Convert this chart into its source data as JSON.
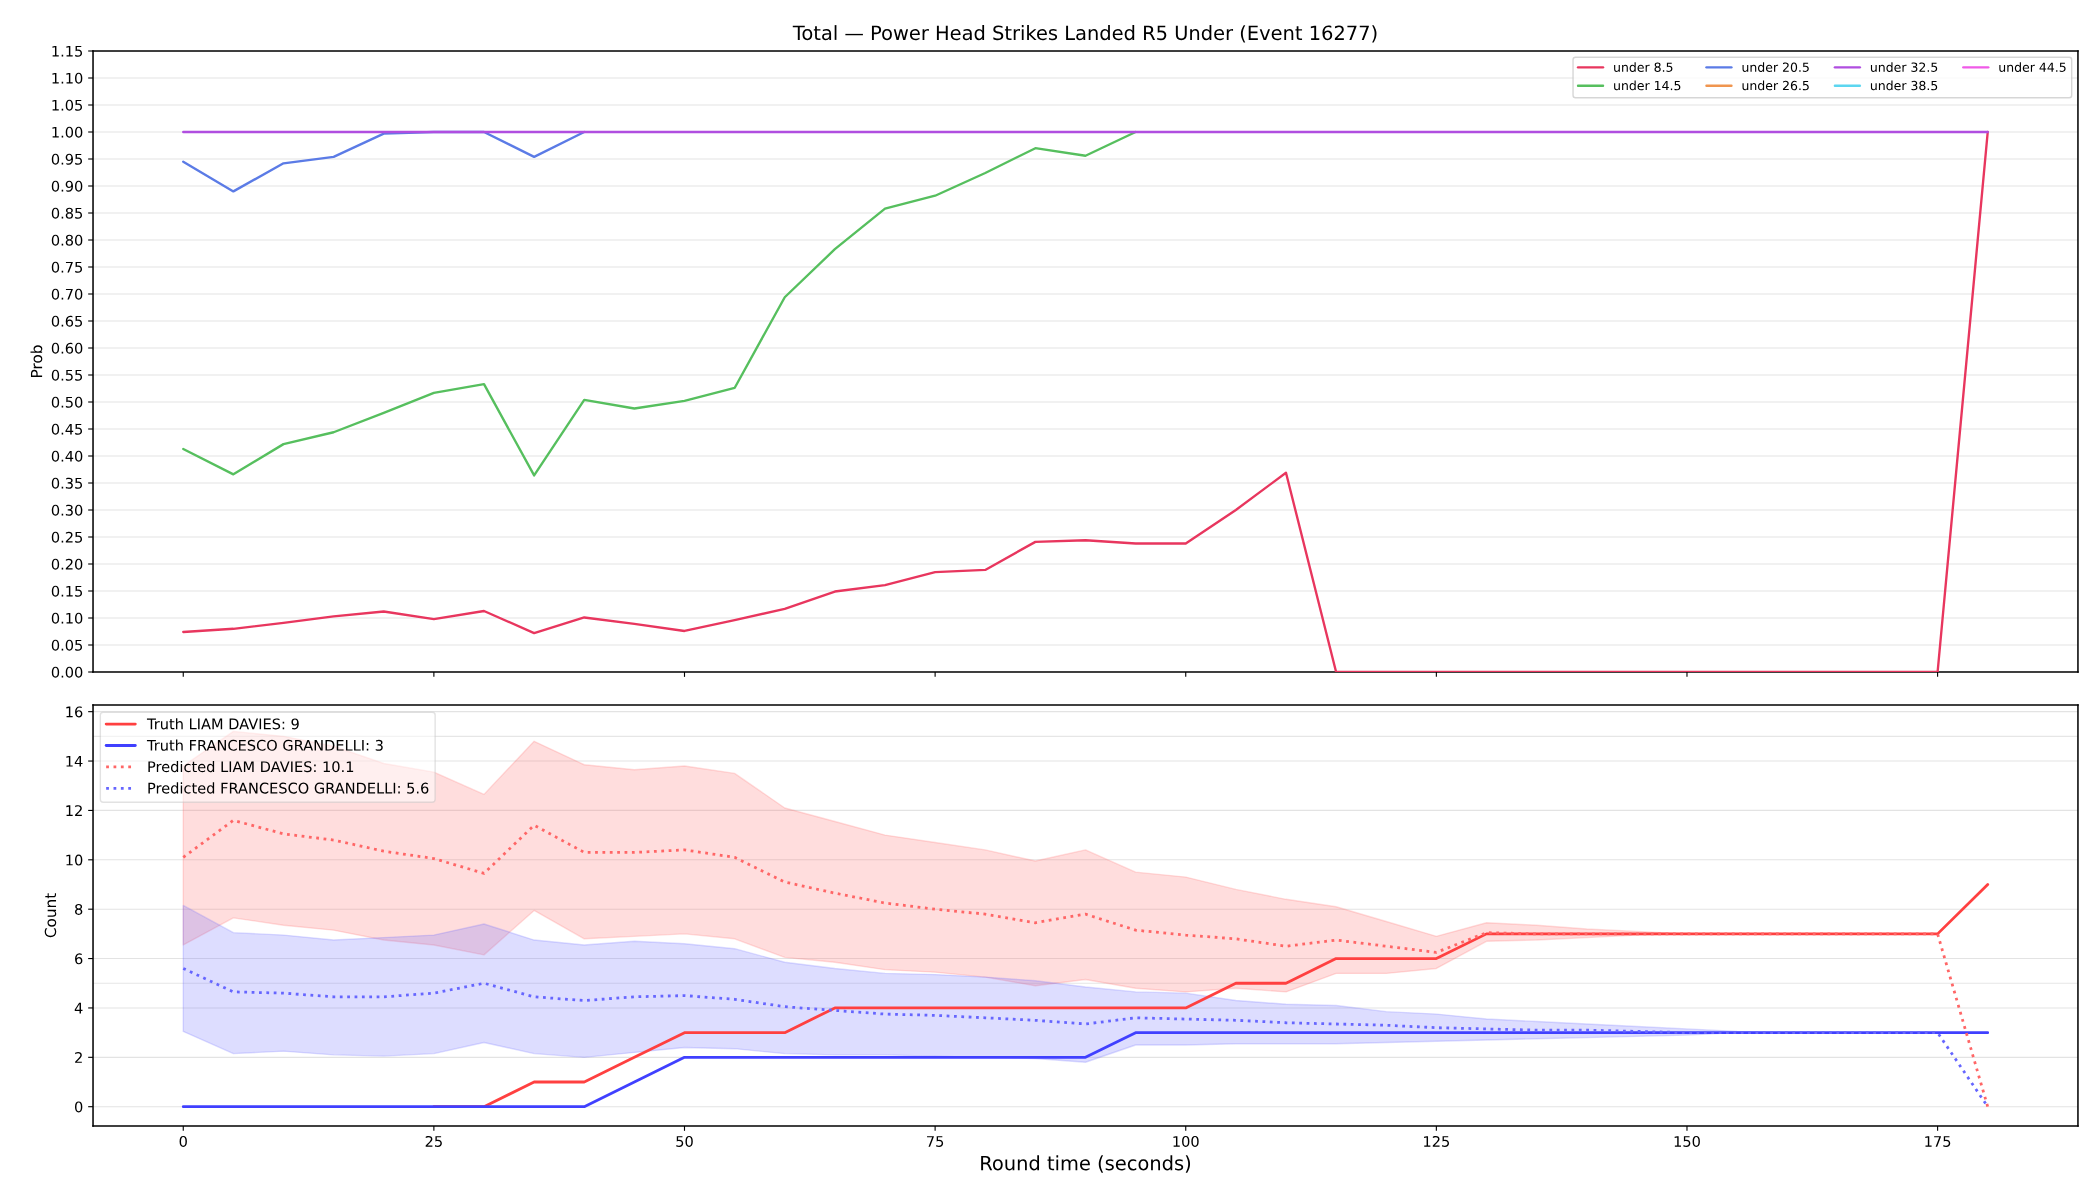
{
  "chart_data": [
    {
      "type": "line",
      "title": "Total — Power Head Strikes Landed R5 Under (Event 16277)",
      "ylabel": "Prob",
      "x": [
        0,
        5,
        10,
        15,
        20,
        25,
        30,
        35,
        40,
        45,
        50,
        55,
        60,
        65,
        70,
        75,
        80,
        85,
        90,
        95,
        100,
        105,
        110,
        115,
        120,
        125,
        130,
        135,
        140,
        145,
        150,
        155,
        160,
        165,
        170,
        175,
        180
      ],
      "series": [
        {
          "name": "under 8.5",
          "color": "#e8365e",
          "values": [
            0.074,
            0.08,
            0.091,
            0.103,
            0.112,
            0.098,
            0.113,
            0.072,
            0.101,
            0.089,
            0.076,
            0.096,
            0.117,
            0.149,
            0.161,
            0.185,
            0.189,
            0.241,
            0.244,
            0.238,
            0.238,
            0.3,
            0.369,
            0,
            0,
            0,
            0,
            0,
            0,
            0,
            0,
            0,
            0,
            0,
            0,
            0,
            1.0
          ]
        },
        {
          "name": "under 14.5",
          "color": "#56bf5e",
          "values": [
            0.413,
            0.366,
            0.422,
            0.444,
            0.48,
            0.517,
            0.533,
            0.364,
            0.504,
            0.488,
            0.502,
            0.526,
            0.694,
            0.783,
            0.858,
            0.882,
            0.924,
            0.97,
            0.956,
            1.0,
            null,
            null,
            null,
            null,
            null,
            null,
            null,
            null,
            null,
            null,
            null,
            null,
            null,
            null,
            null,
            null,
            null
          ]
        },
        {
          "name": "under 20.5",
          "color": "#5b7be6",
          "values": [
            0.945,
            0.89,
            0.942,
            0.954,
            0.997,
            1.0,
            1.0,
            0.954,
            1.0,
            null,
            null,
            null,
            null,
            null,
            null,
            null,
            null,
            null,
            null,
            null,
            null,
            null,
            null,
            null,
            null,
            null,
            null,
            null,
            null,
            null,
            null,
            null,
            null,
            null,
            null,
            null,
            null
          ]
        },
        {
          "name": "under 26.5",
          "color": "#f0954f",
          "values": [
            null,
            null,
            null,
            null,
            null,
            null,
            null,
            null,
            null,
            null,
            null,
            null,
            null,
            null,
            null,
            null,
            null,
            null,
            null,
            null,
            null,
            null,
            null,
            null,
            null,
            null,
            null,
            null,
            null,
            null,
            null,
            null,
            null,
            null,
            null,
            null,
            null
          ]
        },
        {
          "name": "under 32.5",
          "color": "#b04ee0",
          "values": [
            1.0,
            1.0,
            1.0,
            1.0,
            1.0,
            1.0,
            1.0,
            1.0,
            1.0,
            1.0,
            1.0,
            1.0,
            1.0,
            1.0,
            1.0,
            1.0,
            1.0,
            1.0,
            1.0,
            1.0,
            1.0,
            1.0,
            1.0,
            1.0,
            1.0,
            1.0,
            1.0,
            1.0,
            1.0,
            1.0,
            1.0,
            1.0,
            1.0,
            1.0,
            1.0,
            1.0,
            1.0
          ]
        },
        {
          "name": "under 38.5",
          "color": "#5cd6f0",
          "values": [
            null,
            null,
            null,
            null,
            null,
            null,
            null,
            null,
            null,
            null,
            null,
            null,
            null,
            null,
            null,
            null,
            null,
            null,
            null,
            null,
            null,
            null,
            null,
            null,
            null,
            null,
            null,
            null,
            null,
            null,
            null,
            null,
            null,
            null,
            null,
            null,
            null
          ]
        },
        {
          "name": "under 44.5",
          "color": "#f05ae8",
          "values": [
            null,
            null,
            null,
            null,
            null,
            null,
            null,
            null,
            null,
            null,
            null,
            null,
            null,
            null,
            null,
            null,
            null,
            null,
            null,
            null,
            null,
            null,
            null,
            null,
            null,
            null,
            null,
            null,
            null,
            null,
            null,
            null,
            null,
            null,
            null,
            null,
            null
          ]
        }
      ],
      "xlim": [
        -9,
        189
      ],
      "ylim": [
        0,
        1.15
      ],
      "xticks": [
        0,
        25,
        50,
        75,
        100,
        125,
        150,
        175
      ],
      "yticks": [
        {
          "value": 0,
          "label": "0.00"
        },
        0.05,
        {
          "value": 0.1,
          "label": "0.10"
        },
        0.15,
        {
          "value": 0.2,
          "label": "0.20"
        },
        0.25,
        {
          "value": 0.3,
          "label": "0.30"
        },
        0.35,
        {
          "value": 0.4,
          "label": "0.40"
        },
        0.45,
        {
          "value": 0.5,
          "label": "0.50"
        },
        0.55,
        {
          "value": 0.6,
          "label": "0.60"
        },
        0.65,
        {
          "value": 0.7,
          "label": "0.70"
        },
        0.75,
        {
          "value": 0.8,
          "label": "0.80"
        },
        0.85,
        {
          "value": 0.9,
          "label": "0.90"
        },
        0.95,
        {
          "value": 1,
          "label": "1.00"
        },
        1.05,
        {
          "value": 1.1,
          "label": "1.10"
        },
        1.15
      ],
      "grid": "y",
      "legend": "top right",
      "tick_labels": "y"
    },
    {
      "type": "line",
      "xlabel": "Round time (seconds)",
      "ylabel": "Count",
      "x": [
        0,
        5,
        10,
        15,
        20,
        25,
        30,
        35,
        40,
        45,
        50,
        55,
        60,
        65,
        70,
        75,
        80,
        85,
        90,
        95,
        100,
        105,
        110,
        115,
        120,
        125,
        130,
        135,
        140,
        145,
        150,
        155,
        160,
        165,
        170,
        175,
        180
      ],
      "series": [
        {
          "name": "Truth LIAM DAVIES: 9",
          "color": "#ff4040",
          "line_style": "solid",
          "values": [
            null,
            null,
            null,
            null,
            null,
            0,
            0,
            1,
            1,
            2,
            3,
            3,
            3,
            4,
            4,
            4,
            4,
            4,
            4,
            4,
            4,
            5,
            5,
            6,
            6,
            6,
            7,
            7,
            7,
            7,
            7,
            7,
            7,
            7,
            7,
            7,
            9
          ]
        },
        {
          "name": "Truth FRANCESCO GRANDELLI: 3",
          "color": "#4040ff",
          "line_style": "solid",
          "values": [
            0,
            0,
            0,
            0,
            0,
            0,
            0,
            0,
            0,
            1,
            2,
            2,
            2,
            2,
            2,
            2,
            2,
            2,
            2,
            3,
            3,
            3,
            3,
            3,
            3,
            3,
            3,
            3,
            3,
            3,
            3,
            3,
            3,
            3,
            3,
            3,
            3
          ]
        },
        {
          "name": "Predicted LIAM DAVIES: 10.1",
          "color": "#ff6666",
          "line_style": "dotted",
          "values": [
            10.1,
            11.6,
            11.05,
            10.8,
            10.35,
            10.05,
            9.45,
            11.4,
            10.3,
            10.3,
            10.4,
            10.1,
            9.1,
            8.65,
            8.25,
            8.0,
            7.8,
            7.45,
            7.8,
            7.15,
            6.95,
            6.8,
            6.5,
            6.75,
            6.5,
            6.25,
            7.05,
            7.0,
            7.0,
            7.0,
            7.0,
            7.0,
            7.0,
            7.0,
            7.0,
            7.0,
            0
          ],
          "lower": [
            6.55,
            7.65,
            7.35,
            7.15,
            6.75,
            6.55,
            6.15,
            7.95,
            6.8,
            6.9,
            7.0,
            6.8,
            6.05,
            5.85,
            5.55,
            5.45,
            5.25,
            4.9,
            5.15,
            4.8,
            4.65,
            4.8,
            4.65,
            5.4,
            5.4,
            5.6,
            6.7,
            6.75,
            6.85,
            6.95,
            7.0,
            7.0,
            7.0,
            7.0,
            7.0,
            7.0,
            null
          ],
          "upper": [
            13.8,
            15.2,
            15.0,
            14.6,
            13.9,
            13.55,
            12.65,
            14.8,
            13.85,
            13.65,
            13.8,
            13.5,
            12.1,
            11.55,
            11.0,
            10.7,
            10.4,
            9.95,
            10.4,
            9.5,
            9.3,
            8.8,
            8.4,
            8.1,
            7.5,
            6.9,
            7.45,
            7.35,
            7.2,
            7.1,
            7.0,
            7.0,
            7.0,
            7.0,
            7.0,
            7.0,
            null
          ]
        },
        {
          "name": "Predicted FRANCESCO GRANDELLI: 5.6",
          "color": "#6666ff",
          "line_style": "dotted",
          "values": [
            5.6,
            4.65,
            4.6,
            4.45,
            4.45,
            4.6,
            5.0,
            4.45,
            4.3,
            4.45,
            4.5,
            4.35,
            4.05,
            3.9,
            3.75,
            3.7,
            3.6,
            3.5,
            3.35,
            3.6,
            3.55,
            3.5,
            3.4,
            3.35,
            3.3,
            3.2,
            3.15,
            3.1,
            3.1,
            3.05,
            3.0,
            3.0,
            3.0,
            3.0,
            3.0,
            3.0,
            0
          ],
          "lower": [
            3.05,
            2.15,
            2.25,
            2.1,
            2.05,
            2.15,
            2.6,
            2.15,
            2.0,
            2.2,
            2.4,
            2.35,
            2.15,
            2.1,
            2.1,
            2.05,
            2.0,
            1.95,
            1.8,
            2.5,
            2.5,
            2.55,
            2.55,
            2.55,
            2.6,
            2.65,
            2.7,
            2.75,
            2.8,
            2.85,
            2.9,
            3.0,
            3.0,
            3.0,
            3.0,
            3.0,
            null
          ],
          "upper": [
            8.15,
            7.05,
            6.95,
            6.75,
            6.85,
            6.95,
            7.4,
            6.75,
            6.55,
            6.7,
            6.6,
            6.4,
            5.85,
            5.6,
            5.4,
            5.35,
            5.25,
            5.1,
            4.85,
            4.65,
            4.6,
            4.3,
            4.15,
            4.1,
            3.85,
            3.75,
            3.55,
            3.45,
            3.35,
            3.25,
            3.15,
            3.05,
            3.0,
            3.0,
            3.0,
            3.0,
            null
          ]
        }
      ],
      "xlim": [
        -9,
        189
      ],
      "ylim": [
        -0.78,
        16.27
      ],
      "xticks": [
        0,
        25,
        50,
        75,
        100,
        125,
        150,
        175
      ],
      "yticks": [
        0,
        2,
        4,
        6,
        8,
        10,
        12,
        14,
        16
      ],
      "ref_lines": [
        {
          "axis": "y",
          "value": 5,
          "color": "#e6e6e6"
        },
        {
          "axis": "y",
          "value": 15,
          "color": "#e6e6e6"
        }
      ],
      "grid": "y",
      "legend": "top left"
    }
  ]
}
